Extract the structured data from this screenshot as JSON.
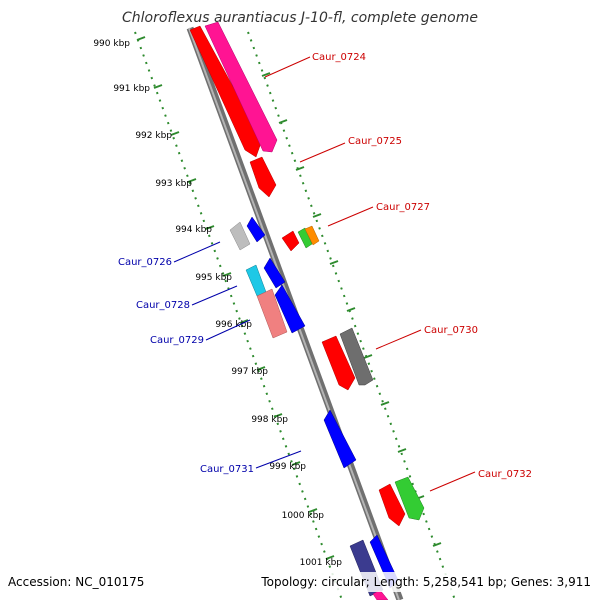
{
  "title": "Chloroflexus aurantiacus J-10-fl, complete genome",
  "footer": {
    "accession": "Accession: NC_010175",
    "summary": "Topology: circular; Length: 5,258,541 bp; Genes: 3,911"
  },
  "ticks": [
    "990 kbp",
    "991 kbp",
    "992 kbp",
    "993 kbp",
    "994 kbp",
    "995 kbp",
    "996 kbp",
    "997 kbp",
    "998 kbp",
    "999 kbp",
    "1000 kbp",
    "1001 kbp"
  ],
  "gene_labels": {
    "forward": [
      "Caur_0724",
      "Caur_0725",
      "Caur_0727",
      "Caur_0730",
      "Caur_0732"
    ],
    "reverse": [
      "Caur_0726",
      "Caur_0728",
      "Caur_0729",
      "Caur_0731"
    ]
  },
  "colors": {
    "backbone": "#808080",
    "tick_track": "#2e8b2e",
    "forward_label": "#cc0000",
    "reverse_label": "#0000aa",
    "red": "#ff0000",
    "pink": "#ff1493",
    "blue": "#0000ff",
    "gray": "#6e6e6e",
    "lightgray": "#bdbdbd",
    "cyan": "#1ec8e6",
    "salmon": "#f08080",
    "green": "#33cc33",
    "orange": "#ff8c00",
    "navy": "#3b3b8f"
  }
}
